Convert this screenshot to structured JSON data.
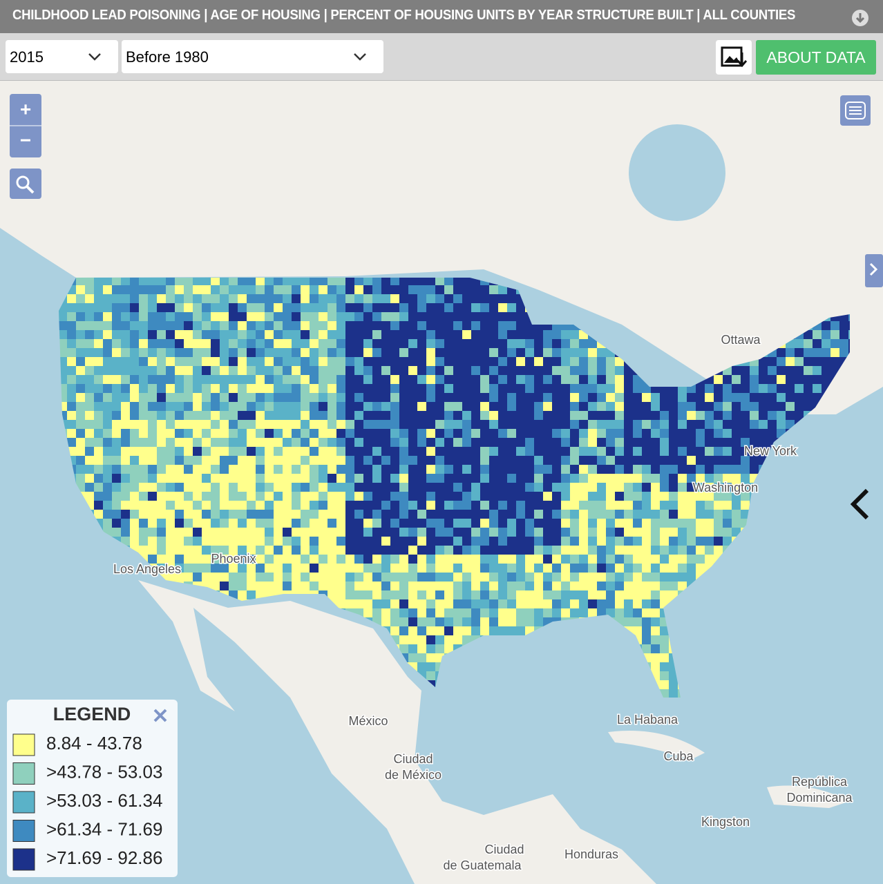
{
  "header": {
    "title": "CHILDHOOD LEAD POISONING | AGE OF HOUSING | PERCENT OF HOUSING UNITS BY YEAR STRUCTURE BUILT | ALL COUNTIES"
  },
  "controls": {
    "year": "2015",
    "period": "Before 1980",
    "about": "ABOUT DATA",
    "zoom_in": "+",
    "zoom_out": "−"
  },
  "map_labels": [
    "Ottawa",
    "New York",
    "Washington",
    "Los Angeles",
    "Phoenix",
    "México",
    "Ciudad",
    "de México",
    "La Habana",
    "Cuba",
    "República",
    "Dominicana",
    "Kingston",
    "Ciudad",
    "de Guatemala",
    "Honduras"
  ],
  "legend": {
    "title": "LEGEND",
    "items": [
      {
        "label": "8.84 - 43.78",
        "color": "#ffff8c"
      },
      {
        "label": ">43.78 - 53.03",
        "color": "#8fd0bd"
      },
      {
        "label": ">53.03 - 61.34",
        "color": "#5ab2c8"
      },
      {
        "label": ">61.34 - 71.69",
        "color": "#3e8ac0"
      },
      {
        "label": ">71.69 - 92.86",
        "color": "#1c318a"
      }
    ]
  }
}
